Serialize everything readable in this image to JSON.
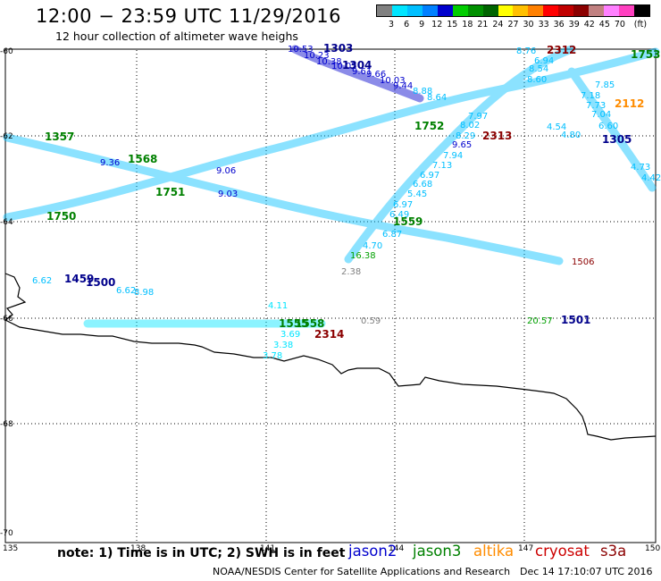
{
  "title": "12:00 − 23:59 UTC 11/29/2016",
  "subtitle": "12 hour collection of altimeter wave heighs",
  "color_scale": {
    "unit_label": "(ft)",
    "colors": [
      "#808080",
      "#00e5ff",
      "#00bfff",
      "#0080ff",
      "#0000cd",
      "#00cd00",
      "#009000",
      "#006400",
      "#ffff00",
      "#ffc000",
      "#ff8000",
      "#ff0000",
      "#c00000",
      "#8b0000",
      "#c08080",
      "#ff80ff",
      "#ff40c0",
      "#000000"
    ],
    "labels": [
      "3",
      "6",
      "9",
      "12",
      "15",
      "18",
      "21",
      "24",
      "27",
      "30",
      "33",
      "36",
      "39",
      "42",
      "45",
      "70",
      "(ft)"
    ]
  },
  "map": {
    "lon_ticks": [
      "135",
      "138",
      "141",
      "144",
      "147",
      "150"
    ],
    "lat_ticks": [
      "-60",
      "-62",
      "-64",
      "-66",
      "-68",
      "-70"
    ]
  },
  "note": "note:  1) Time is in UTC;  2) SWH is in feet",
  "legend": [
    {
      "name": "jason2",
      "color": "#0000cd"
    },
    {
      "name": "jason3",
      "color": "#008000"
    },
    {
      "name": "altika",
      "color": "#ff8c00"
    },
    {
      "name": "cryosat",
      "color": "#cc0000"
    },
    {
      "name": "s3a",
      "color": "#8b0000"
    }
  ],
  "footer_left": "NOAA/NESDIS Center for Satellite Applications and Research",
  "footer_right": "Dec 14 17:10:07 UTC 2016",
  "track_labels": [
    {
      "text": "10.53",
      "color": "#0000cd"
    },
    {
      "text": "1303",
      "color": "#00008b",
      "bold": true
    },
    {
      "text": "10.23",
      "color": "#0000cd"
    },
    {
      "text": "10.38",
      "color": "#0000cd"
    },
    {
      "text": "10.02",
      "color": "#0000cd"
    },
    {
      "text": "1304",
      "color": "#00008b",
      "bold": true
    },
    {
      "text": "9.61",
      "color": "#0000cd"
    },
    {
      "text": "9.66",
      "color": "#0000cd"
    },
    {
      "text": "10.03",
      "color": "#0000cd"
    },
    {
      "text": "9.44",
      "color": "#0000cd"
    },
    {
      "text": "8.88",
      "color": "#00bfff"
    },
    {
      "text": "8.64",
      "color": "#00bfff"
    },
    {
      "text": "8.76",
      "color": "#00bfff"
    },
    {
      "text": "2312",
      "color": "#8b0000",
      "bold": true
    },
    {
      "text": "6.94",
      "color": "#00bfff"
    },
    {
      "text": "8.54",
      "color": "#00bfff"
    },
    {
      "text": "8.60",
      "color": "#00bfff"
    },
    {
      "text": "7.85",
      "color": "#00bfff"
    },
    {
      "text": "7.18",
      "color": "#00bfff"
    },
    {
      "text": "7.73",
      "color": "#00bfff"
    },
    {
      "text": "2112",
      "color": "#ff8c00",
      "bold": true
    },
    {
      "text": "7.04",
      "color": "#00bfff"
    },
    {
      "text": "6.60",
      "color": "#00bfff"
    },
    {
      "text": "1305",
      "color": "#00008b",
      "bold": true
    },
    {
      "text": "4.73",
      "color": "#00bfff"
    },
    {
      "text": "4.42",
      "color": "#00bfff"
    },
    {
      "text": "4.54",
      "color": "#00bfff"
    },
    {
      "text": "4.80",
      "color": "#00bfff"
    },
    {
      "text": "1753",
      "color": "#008000",
      "bold": true
    },
    {
      "text": "1357",
      "color": "#008000",
      "bold": true
    },
    {
      "text": "1568",
      "color": "#008000",
      "bold": true
    },
    {
      "text": "1751",
      "color": "#008000",
      "bold": true
    },
    {
      "text": "1750",
      "color": "#008000",
      "bold": true
    },
    {
      "text": "1752",
      "color": "#008000",
      "bold": true
    },
    {
      "text": "2313",
      "color": "#8b0000",
      "bold": true
    },
    {
      "text": "9.65",
      "color": "#0000cd"
    },
    {
      "text": "9.06",
      "color": "#0000cd"
    },
    {
      "text": "9.03",
      "color": "#0000cd"
    },
    {
      "text": "9.36",
      "color": "#0000cd"
    },
    {
      "text": "7.97",
      "color": "#00bfff"
    },
    {
      "text": "8.02",
      "color": "#00bfff"
    },
    {
      "text": "8.29",
      "color": "#00bfff"
    },
    {
      "text": "7.94",
      "color": "#00bfff"
    },
    {
      "text": "7.13",
      "color": "#00bfff"
    },
    {
      "text": "6.97",
      "color": "#00bfff"
    },
    {
      "text": "6.68",
      "color": "#00bfff"
    },
    {
      "text": "5.45",
      "color": "#00bfff"
    },
    {
      "text": "6.97",
      "color": "#00bfff"
    },
    {
      "text": "6.49",
      "color": "#00bfff"
    },
    {
      "text": "1559",
      "color": "#008000",
      "bold": true
    },
    {
      "text": "6.87",
      "color": "#00bfff"
    },
    {
      "text": "4.70",
      "color": "#00bfff"
    },
    {
      "text": "16.38",
      "color": "#00a000"
    },
    {
      "text": "2.38",
      "color": "#808080"
    },
    {
      "text": "1506",
      "color": "#8b0000"
    },
    {
      "text": "1459",
      "color": "#00008b",
      "bold": true
    },
    {
      "text": "1500",
      "color": "#00008b",
      "bold": true
    },
    {
      "text": "6.62",
      "color": "#00bfff"
    },
    {
      "text": "6.62",
      "color": "#00bfff"
    },
    {
      "text": "8.98",
      "color": "#00bfff"
    },
    {
      "text": "4.11",
      "color": "#00e5ff"
    },
    {
      "text": "1558",
      "color": "#008000",
      "bold": true
    },
    {
      "text": "1555",
      "color": "#008000",
      "bold": true
    },
    {
      "text": "2314",
      "color": "#8b0000",
      "bold": true
    },
    {
      "text": "0.59",
      "color": "#808080"
    },
    {
      "text": "20.57",
      "color": "#00a000"
    },
    {
      "text": "1501",
      "color": "#00008b",
      "bold": true
    },
    {
      "text": "3.69",
      "color": "#00e5ff"
    },
    {
      "text": "3.38",
      "color": "#00e5ff"
    },
    {
      "text": "3.78",
      "color": "#00e5ff"
    }
  ]
}
